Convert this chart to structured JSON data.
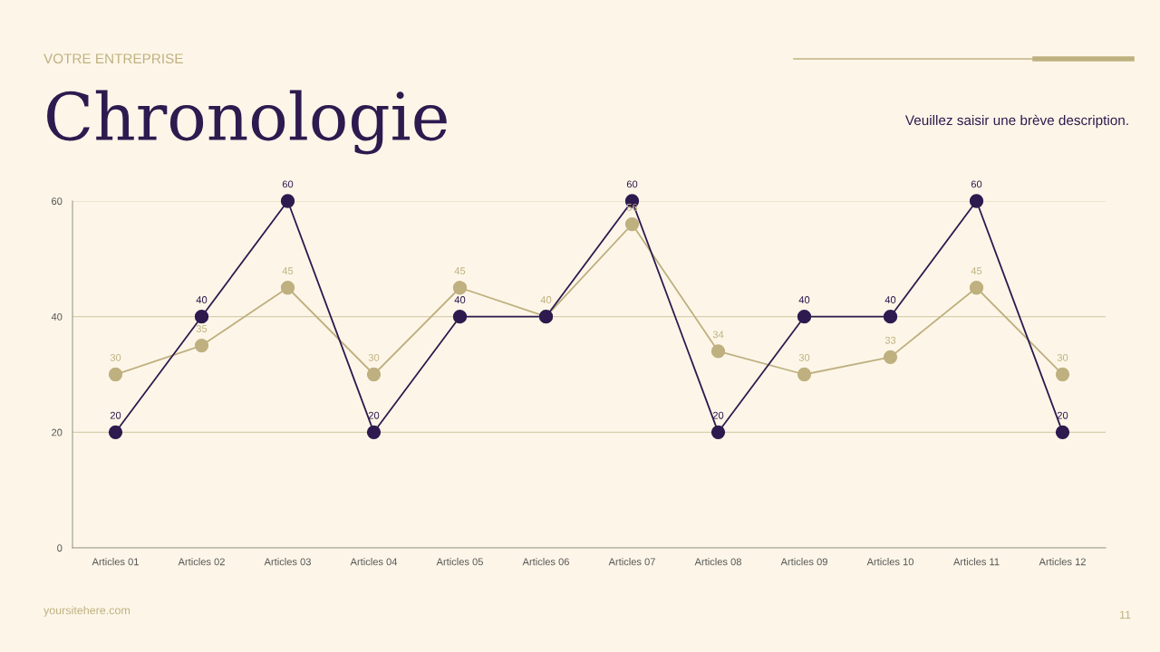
{
  "chart_data": {
    "type": "line",
    "title": "Chronologie",
    "subtitle": "Veuillez saisir une brève description.",
    "annotations": [
      "VOTRE ENTREPRISE",
      "yoursitehere.com",
      "11"
    ],
    "categories": [
      "Articles 01",
      "Articles 02",
      "Articles 03",
      "Articles 04",
      "Articles 05",
      "Articles 06",
      "Articles 07",
      "Articles 08",
      "Articles 09",
      "Articles 10",
      "Articles 11",
      "Articles 12"
    ],
    "series": [
      {
        "color": "#bfb080",
        "values": [
          30,
          35,
          45,
          30,
          45,
          40,
          56,
          34,
          30,
          33,
          45,
          30
        ],
        "value_labels": [
          "30",
          "35",
          "45",
          "30",
          "45",
          "40",
          "56",
          "34",
          "30",
          "33",
          "45",
          "30"
        ]
      },
      {
        "color": "#2e1a4f",
        "values": [
          20,
          40,
          60,
          20,
          40,
          40,
          60,
          20,
          40,
          40,
          60,
          20
        ],
        "value_labels": [
          "20",
          "40",
          "60",
          "20",
          "40",
          null,
          "60",
          "20",
          "40",
          "40",
          "60",
          "20"
        ]
      }
    ],
    "ylim": [
      0,
      60
    ],
    "yticks": [
      0,
      20,
      40,
      60
    ],
    "grid": "y",
    "marker": "circle",
    "line_style": "solid"
  }
}
